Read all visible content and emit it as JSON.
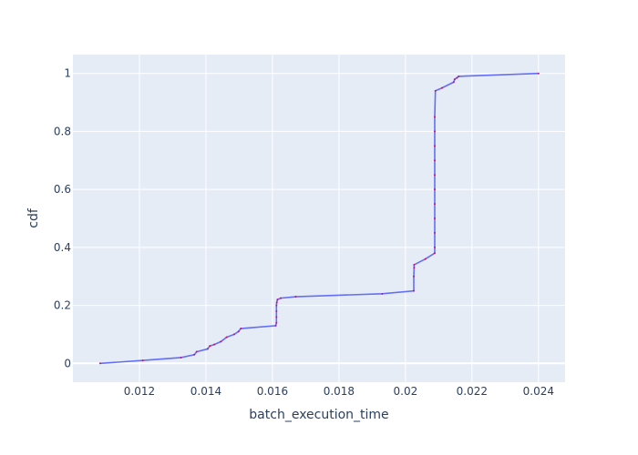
{
  "chart_data": {
    "type": "line",
    "title": "",
    "xlabel": "batch_execution_time",
    "ylabel": "cdf",
    "xlim": [
      0.01,
      0.0248
    ],
    "ylim": [
      -0.065,
      1.065
    ],
    "x_ticks": [
      0.012,
      0.014,
      0.016,
      0.018,
      0.02,
      0.022,
      0.024
    ],
    "x_tick_labels": [
      "0.012",
      "0.014",
      "0.016",
      "0.018",
      "0.02",
      "0.022",
      "0.024"
    ],
    "y_ticks": [
      0,
      0.2,
      0.4,
      0.6,
      0.8,
      1
    ],
    "y_tick_labels": [
      "0",
      "0.2",
      "0.4",
      "0.6",
      "0.8",
      "1"
    ],
    "grid": true,
    "colors": {
      "plot_bg": "#e5ecf6",
      "grid": "#ffffff",
      "line": "#636efa",
      "marker": "#c0147a"
    },
    "series": [
      {
        "x": [
          0.01082,
          0.0121,
          0.01325,
          0.01365,
          0.01372,
          0.01405,
          0.01412,
          0.01425,
          0.01445,
          0.01462,
          0.01485,
          0.01498,
          0.01505,
          0.0161,
          0.01612,
          0.01612,
          0.01612,
          0.01612,
          0.01613,
          0.01615,
          0.01625,
          0.0167,
          0.0193,
          0.02025,
          0.02025,
          0.02026,
          0.02026,
          0.0206,
          0.02088,
          0.02088,
          0.02088,
          0.02088,
          0.02088,
          0.02088,
          0.02088,
          0.02088,
          0.02088,
          0.02088,
          0.02088,
          0.0209,
          0.0211,
          0.02145,
          0.02148,
          0.02155,
          0.0216,
          0.024
        ],
        "y": [
          0,
          0.01,
          0.02,
          0.03,
          0.04,
          0.05,
          0.06,
          0.065,
          0.075,
          0.09,
          0.1,
          0.11,
          0.12,
          0.13,
          0.14,
          0.16,
          0.18,
          0.2,
          0.21,
          0.22,
          0.225,
          0.23,
          0.24,
          0.25,
          0.3,
          0.33,
          0.34,
          0.36,
          0.38,
          0.4,
          0.45,
          0.5,
          0.55,
          0.6,
          0.65,
          0.7,
          0.75,
          0.8,
          0.85,
          0.94,
          0.95,
          0.97,
          0.98,
          0.985,
          0.99,
          1.0
        ]
      }
    ]
  }
}
